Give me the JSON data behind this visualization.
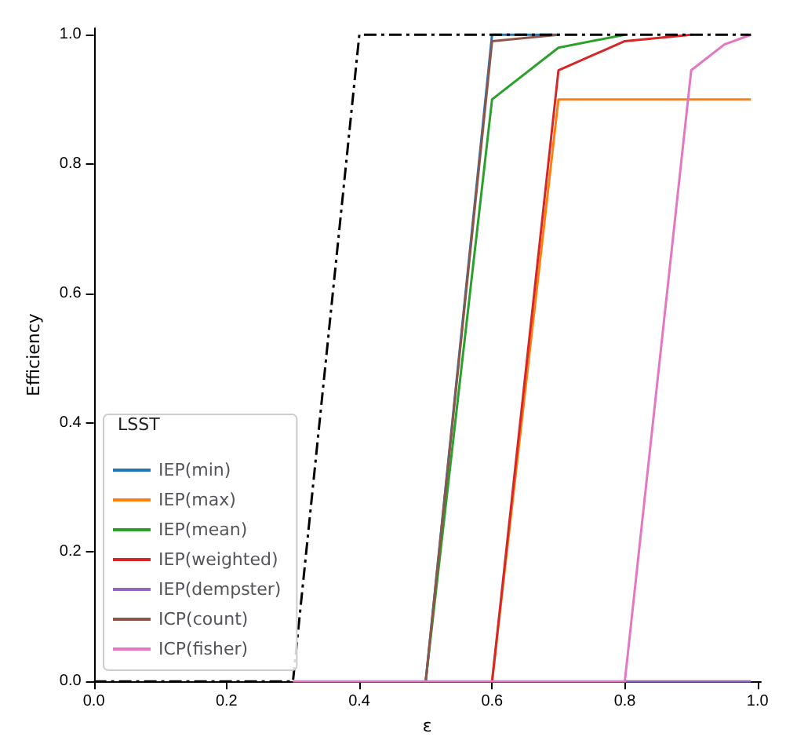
{
  "chart_data": {
    "type": "line",
    "xlabel": "ε",
    "ylabel": "Efficiency",
    "legend_title": "LSST",
    "legend": "bottom left",
    "grid": false,
    "marker": "none",
    "x": [
      0,
      0.1,
      0.2,
      0.3,
      0.4,
      0.5,
      0.6,
      0.7,
      0.8,
      0.9,
      0.95,
      0.99
    ],
    "xlim": [
      0,
      1.005
    ],
    "xticks": [
      {
        "value": 0,
        "label": "0.0"
      },
      0.2,
      0.4,
      0.6,
      0.8,
      {
        "value": 1,
        "label": "1.0"
      }
    ],
    "ylim": [
      0,
      1.01
    ],
    "yticks": [
      {
        "value": 0,
        "label": "0.0"
      },
      0.2,
      0.4,
      0.6,
      0.8,
      {
        "value": 1,
        "label": "1.0"
      }
    ],
    "series": [
      {
        "name": "IEP(min)",
        "color": "#1f77b4",
        "values": [
          null,
          null,
          null,
          null,
          null,
          0,
          1,
          1,
          null,
          null,
          null,
          null
        ]
      },
      {
        "name": "IEP(max)",
        "color": "#ff7f0e",
        "values": [
          null,
          null,
          null,
          null,
          null,
          null,
          0,
          0.9,
          0.9,
          0.9,
          0.9,
          0.9
        ]
      },
      {
        "name": "IEP(mean)",
        "color": "#2ca02c",
        "values": [
          null,
          null,
          null,
          null,
          null,
          0,
          0.9,
          0.98,
          1,
          null,
          null,
          null
        ]
      },
      {
        "name": "IEP(weighted)",
        "color": "#d62728",
        "values": [
          null,
          null,
          null,
          null,
          null,
          null,
          0,
          0.945,
          0.99,
          1,
          null,
          null
        ]
      },
      {
        "name": "IEP(dempster)",
        "color": "#9467bd",
        "values": [
          null,
          null,
          null,
          null,
          null,
          null,
          null,
          null,
          0,
          0,
          0,
          0
        ]
      },
      {
        "name": "ICP(count)",
        "color": "#8c564b",
        "values": [
          null,
          null,
          null,
          null,
          null,
          0,
          0.99,
          1,
          null,
          null,
          null,
          null
        ]
      },
      {
        "name": "ICP(fisher)",
        "color": "#e377c2",
        "values": [
          null,
          null,
          null,
          0,
          0,
          0,
          0,
          0,
          0,
          0.945,
          0.985,
          1
        ]
      },
      {
        "color": "#000000",
        "line_style": "dashdot",
        "values": [
          0,
          0,
          0,
          0,
          1,
          1,
          1,
          1,
          1,
          1,
          1,
          1
        ]
      }
    ]
  }
}
